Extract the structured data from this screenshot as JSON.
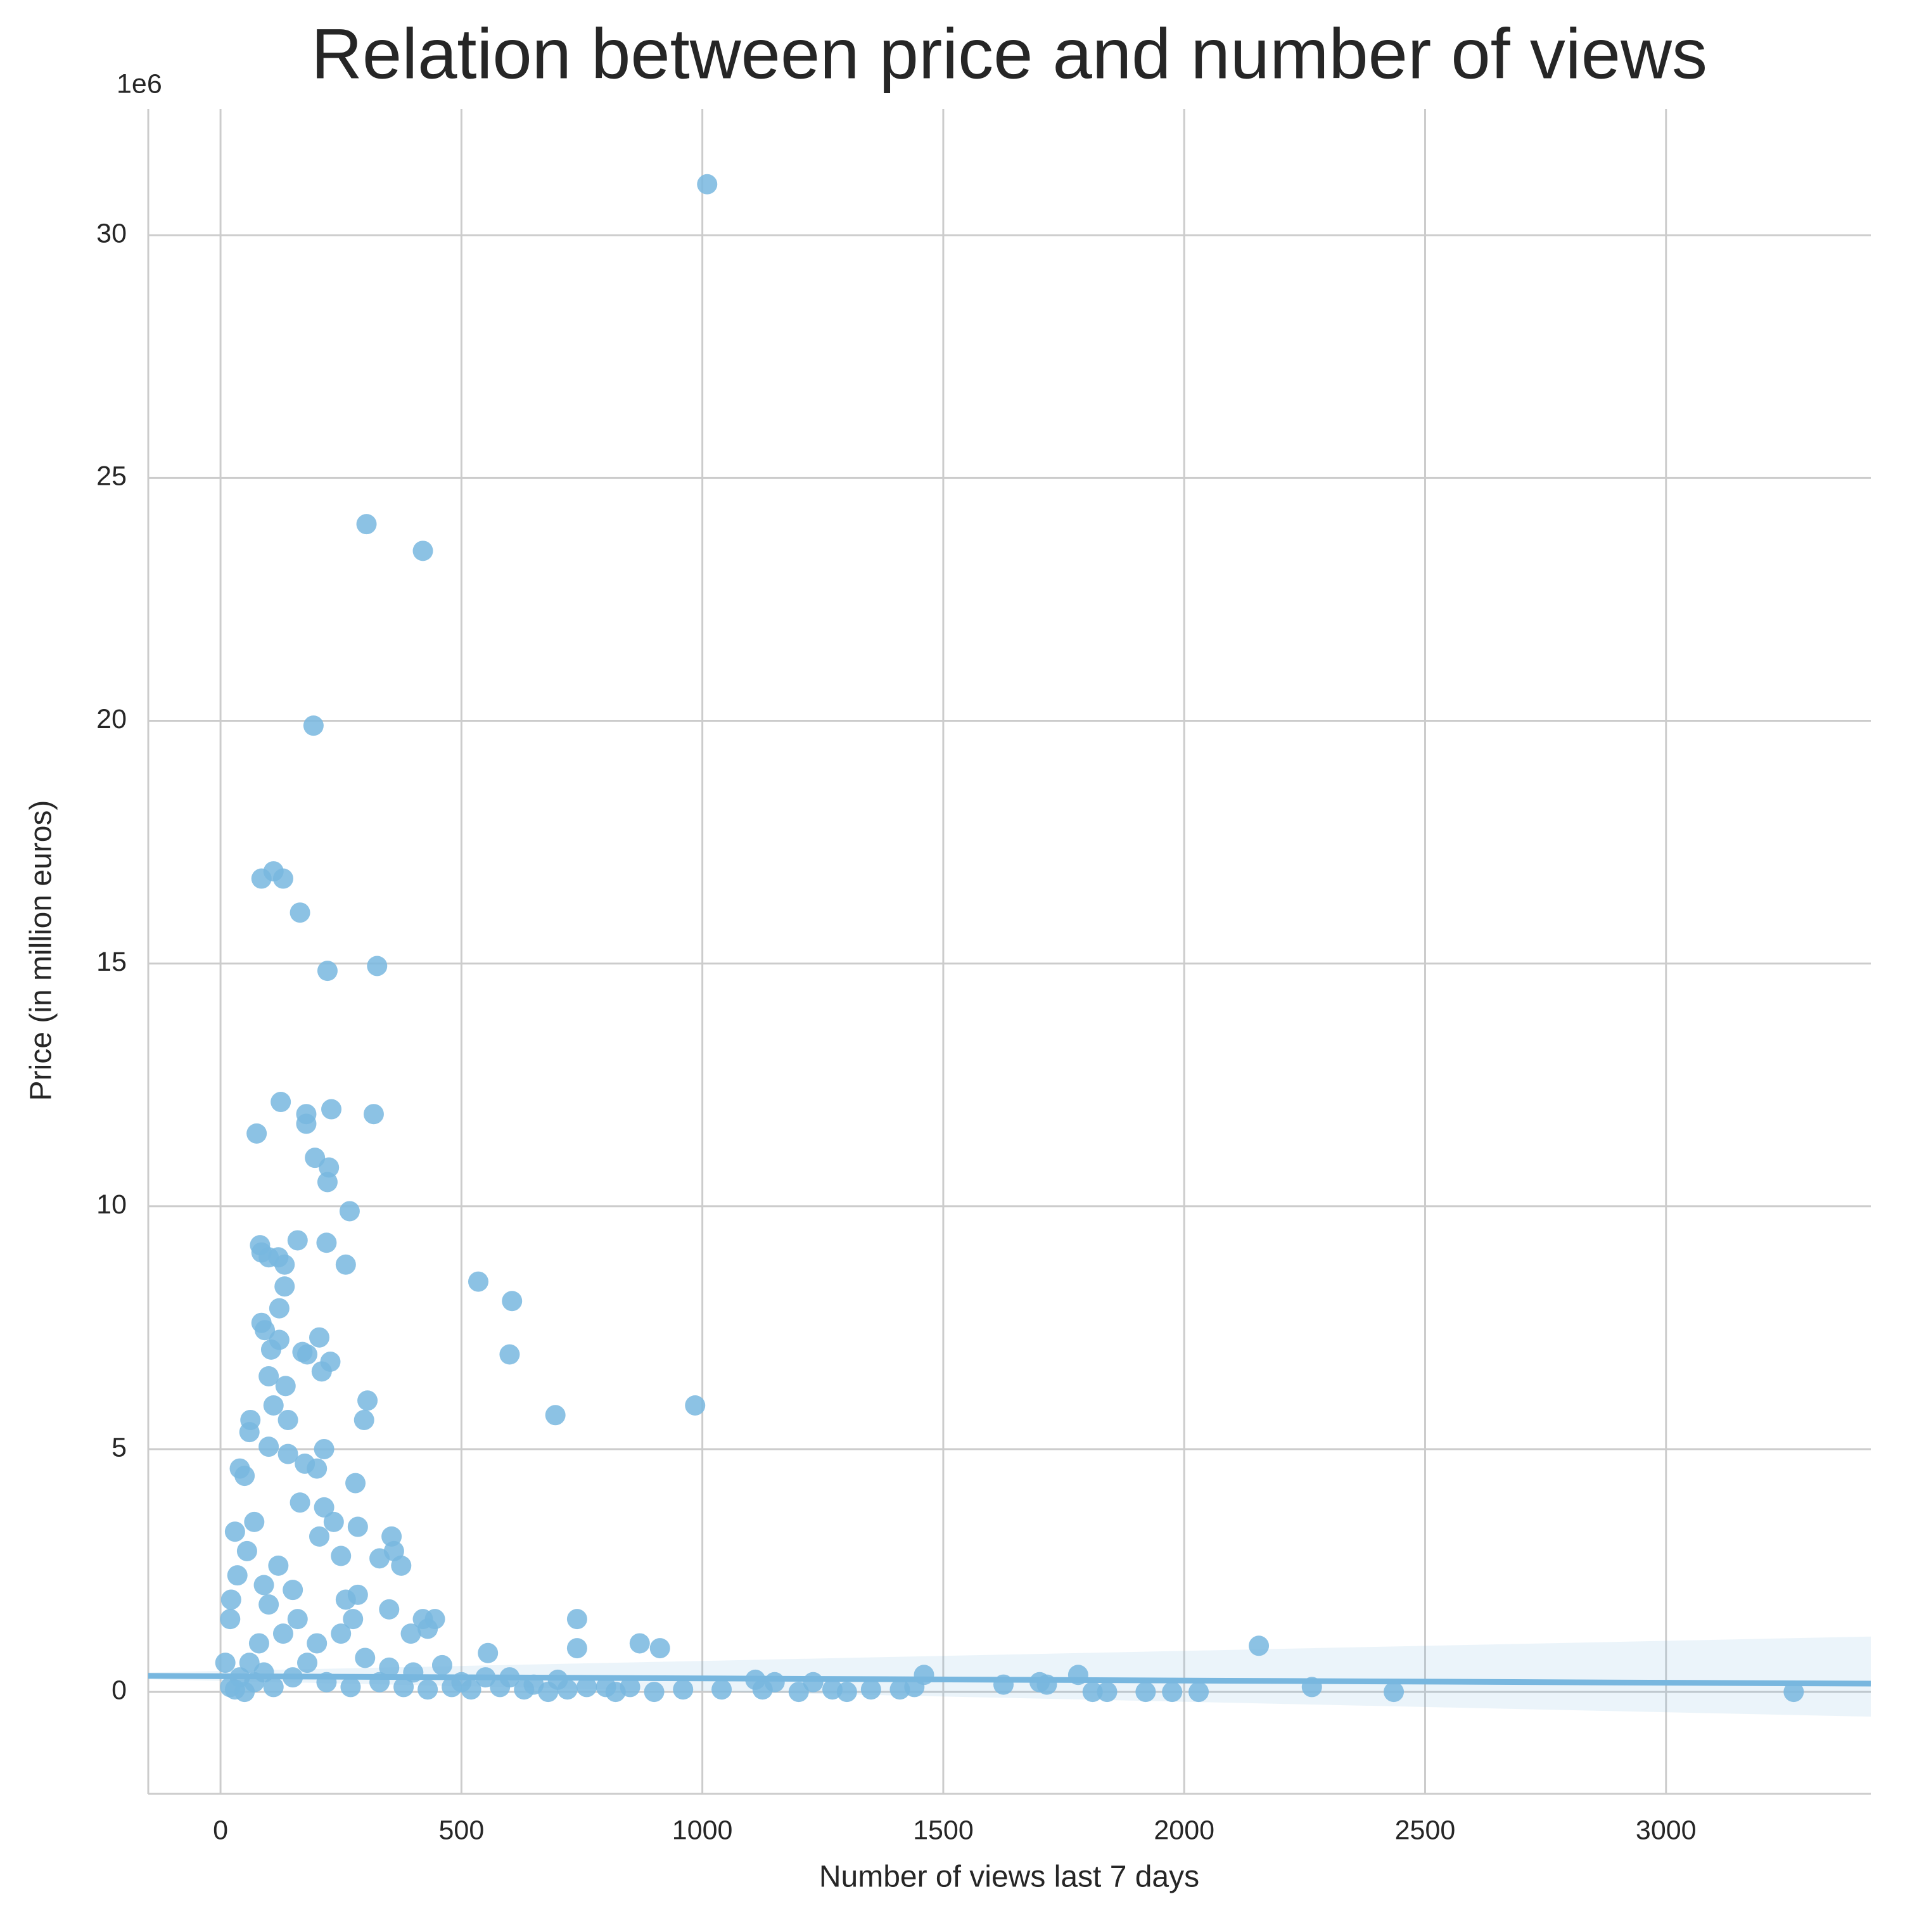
{
  "chart_data": {
    "type": "scatter",
    "title": "Relation between price and number of views",
    "x_label": "Number of views last 7 days",
    "y_label": "Price (in million euros)",
    "y_offset_label": "1e6",
    "xlim": [
      -150,
      3425
    ],
    "ylim": [
      -2.1,
      32.6
    ],
    "xticks": [
      0,
      500,
      1000,
      1500,
      2000,
      2500,
      3000
    ],
    "yticks": [
      0,
      5,
      10,
      15,
      20,
      25,
      30
    ],
    "grid": true,
    "color": "#78b7df",
    "x": [
      1010,
      303,
      420,
      193,
      85,
      110,
      130,
      165,
      222,
      325,
      125,
      75,
      178,
      178,
      230,
      318,
      196,
      225,
      222,
      268,
      82,
      85,
      160,
      220,
      100,
      120,
      133,
      260,
      535,
      605,
      133,
      122,
      85,
      92,
      122,
      205,
      105,
      170,
      180,
      228,
      210,
      100,
      600,
      695,
      985,
      305,
      298,
      135,
      110,
      62,
      60,
      140,
      215,
      100,
      140,
      175,
      40,
      50,
      200,
      280,
      215,
      165,
      285,
      355,
      360,
      330,
      375,
      250,
      235,
      205,
      70,
      30,
      20,
      22,
      35,
      55,
      90,
      120,
      150,
      260,
      285,
      275,
      350,
      420,
      445,
      430,
      395,
      740,
      740,
      870,
      912,
      555,
      2155,
      1460,
      1780,
      1700,
      1715,
      1625,
      2265,
      2435,
      3265,
      1810,
      1840,
      1920,
      1975,
      2030,
      1230,
      1150,
      1110,
      1125,
      1040,
      1200,
      1270,
      1300,
      1350,
      1410,
      1440,
      960,
      900,
      850,
      800,
      760,
      700,
      650,
      600,
      550,
      500,
      460,
      400,
      350,
      300,
      250,
      200,
      160,
      130,
      100,
      80,
      60,
      40,
      20,
      10,
      30,
      50,
      70,
      90,
      110,
      150,
      180,
      220,
      270,
      330,
      380,
      430,
      480,
      520,
      580,
      630,
      680,
      720,
      820
    ],
    "values": [
      31.05,
      24.05,
      23.5,
      19.9,
      16.75,
      16.9,
      16.75,
      16.05,
      14.85,
      14.95,
      12.15,
      11.5,
      11.9,
      11.7,
      12.0,
      11.9,
      11.0,
      10.8,
      10.5,
      9.9,
      9.2,
      9.05,
      9.3,
      9.25,
      8.95,
      8.95,
      8.8,
      8.8,
      8.45,
      8.05,
      8.35,
      7.9,
      7.6,
      7.45,
      7.25,
      7.3,
      7.05,
      7.0,
      6.95,
      6.8,
      6.6,
      6.5,
      6.95,
      5.7,
      5.9,
      6.0,
      5.6,
      6.3,
      5.9,
      5.6,
      5.35,
      5.6,
      5.0,
      5.05,
      4.9,
      4.7,
      4.6,
      4.45,
      4.6,
      4.3,
      3.8,
      3.9,
      3.4,
      3.2,
      2.9,
      2.75,
      2.6,
      2.8,
      3.5,
      3.2,
      3.5,
      3.3,
      1.5,
      1.9,
      2.4,
      2.9,
      2.2,
      2.6,
      2.1,
      1.9,
      2.0,
      1.5,
      1.7,
      1.5,
      1.5,
      1.3,
      1.2,
      1.5,
      0.9,
      1.0,
      0.9,
      0.8,
      0.95,
      0.35,
      0.35,
      0.2,
      0.15,
      0.15,
      0.1,
      0.0,
      0.0,
      0.0,
      0.0,
      0.0,
      0.0,
      0.0,
      0.2,
      0.2,
      0.25,
      0.05,
      0.05,
      0.0,
      0.05,
      0.0,
      0.05,
      0.05,
      0.1,
      0.05,
      0.0,
      0.1,
      0.1,
      0.1,
      0.25,
      0.15,
      0.3,
      0.3,
      0.2,
      0.55,
      0.4,
      0.5,
      0.7,
      1.2,
      1.0,
      1.5,
      1.2,
      1.8,
      1.0,
      0.6,
      0.3,
      0.1,
      0.6,
      0.05,
      0.0,
      0.2,
      0.4,
      0.1,
      0.3,
      0.6,
      0.2,
      0.1,
      0.2,
      0.1,
      0.05,
      0.1,
      0.05,
      0.1,
      0.05,
      0.0,
      0.05,
      0.0
    ],
    "regression": {
      "x": [
        -150,
        3425
      ],
      "values": [
        0.33,
        0.17
      ],
      "ci_lower": [
        0.26,
        -0.51
      ],
      "ci_upper": [
        0.4,
        1.14
      ]
    }
  }
}
